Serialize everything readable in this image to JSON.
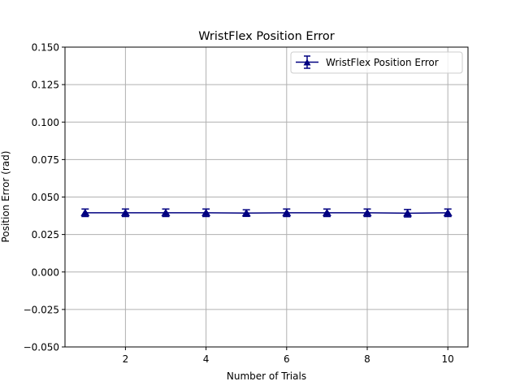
{
  "chart_data": {
    "type": "line",
    "title": "WristFlex Position Error",
    "xlabel": "Number of Trials",
    "ylabel": "Position Error (rad)",
    "xlim": [
      0.5,
      10.5
    ],
    "ylim": [
      -0.05,
      0.15
    ],
    "xticks": [
      2,
      4,
      6,
      8,
      10
    ],
    "xtick_labels": [
      "2",
      "4",
      "6",
      "8",
      "10"
    ],
    "yticks": [
      -0.05,
      -0.025,
      0.0,
      0.025,
      0.05,
      0.075,
      0.1,
      0.125,
      0.15
    ],
    "ytick_labels": [
      "−0.050",
      "−0.025",
      "0.000",
      "0.025",
      "0.050",
      "0.075",
      "0.100",
      "0.125",
      "0.150"
    ],
    "grid": true,
    "legend_position": "top-right",
    "colors": {
      "series": "#000080",
      "grid": "#b0b0b0"
    },
    "series": [
      {
        "name": "WristFlex Position Error",
        "marker": "triangle",
        "x": [
          1,
          2,
          3,
          4,
          5,
          6,
          7,
          8,
          9,
          10
        ],
        "values": [
          0.0395,
          0.0395,
          0.0395,
          0.0395,
          0.0393,
          0.0395,
          0.0395,
          0.0395,
          0.0392,
          0.0395
        ],
        "error": [
          0.0025,
          0.0025,
          0.0025,
          0.0025,
          0.0022,
          0.0025,
          0.0025,
          0.0025,
          0.0025,
          0.0025
        ]
      }
    ]
  }
}
